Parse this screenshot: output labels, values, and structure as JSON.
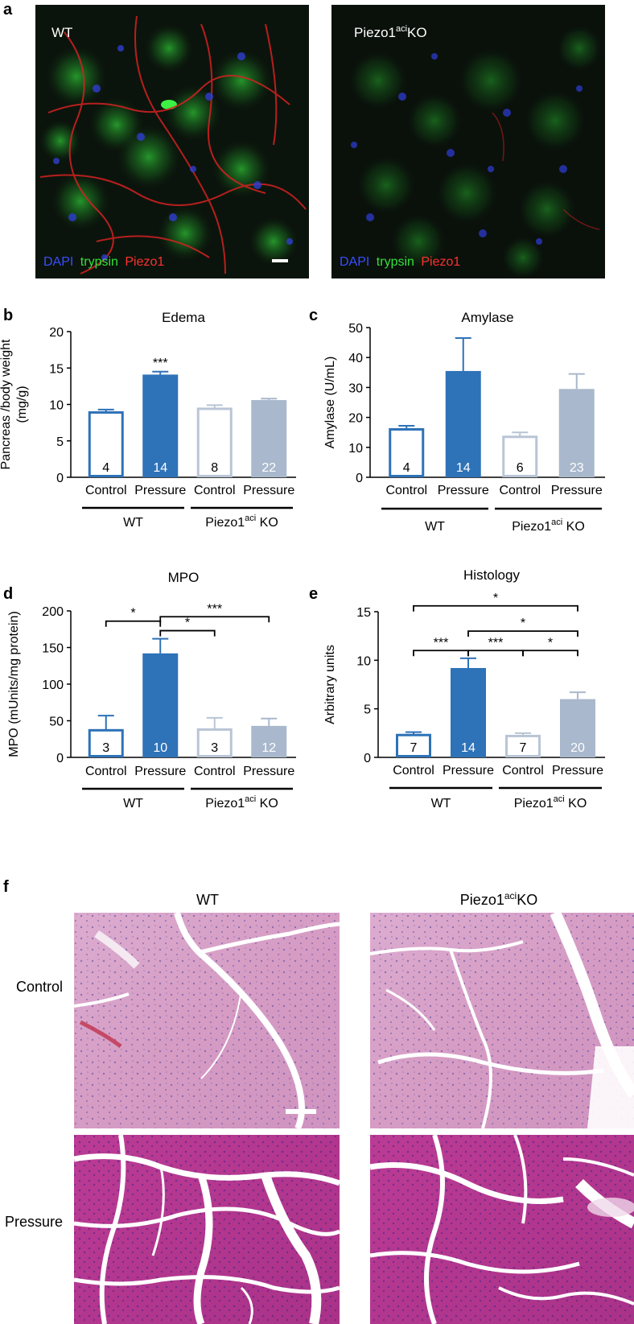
{
  "panel_letters": {
    "a": "a",
    "b": "b",
    "c": "c",
    "d": "d",
    "e": "e",
    "f": "f"
  },
  "micrographs": {
    "wt_label": "WT",
    "ko_label_base": "Piezo1",
    "ko_label_sup": "aci",
    "ko_label_tail": "KO",
    "stain_legend": {
      "dapi": "DAPI",
      "trypsin": "trypsin",
      "piezo1": "Piezo1"
    },
    "colors": {
      "dapi": "#3a4dff",
      "trypsin": "#35e03a",
      "piezo1": "#ff3030",
      "label": "#ffffff"
    }
  },
  "histology": {
    "col_wt": "WT",
    "col_ko_base": "Piezo1",
    "col_ko_sup": "aci",
    "col_ko_tail": "KO",
    "row_control": "Control",
    "row_pressure": "Pressure"
  },
  "colors": {
    "wt": "#2e72b8",
    "ko": "#a9b8cc",
    "ko_control": "#b9c5d5",
    "text": "#000000"
  },
  "chart_data": [
    {
      "id": "b",
      "type": "bar",
      "title": "Edema",
      "ylabel_lines": [
        "Pancreas /body weight",
        "(mg/g)"
      ],
      "categories": [
        "Control",
        "Pressure",
        "Control",
        "Pressure"
      ],
      "values": [
        8.9,
        14.1,
        9.4,
        10.6
      ],
      "errors": [
        0.4,
        0.4,
        0.5,
        0.2
      ],
      "n_labels": [
        "4",
        "14",
        "8",
        "22"
      ],
      "filled": [
        false,
        true,
        false,
        true
      ],
      "group": [
        "wt",
        "wt",
        "ko",
        "ko"
      ],
      "ylim": [
        0,
        20
      ],
      "yticks": [
        0,
        5,
        10,
        15,
        20
      ],
      "groups": [
        {
          "name": "WT"
        },
        {
          "name_base": "Piezo1",
          "name_sup": "aci",
          "name_tail": " KO"
        }
      ],
      "annotations": [
        {
          "bar": 1,
          "text": "***"
        }
      ],
      "brackets": []
    },
    {
      "id": "c",
      "type": "bar",
      "title": "Amylase",
      "ylabel_lines": [
        "Amylase (U/mL)"
      ],
      "categories": [
        "Control",
        "Pressure",
        "Control",
        "Pressure"
      ],
      "values": [
        16,
        35.5,
        13.5,
        29.5
      ],
      "errors": [
        1.2,
        11,
        1.5,
        5
      ],
      "n_labels": [
        "4",
        "14",
        "6",
        "23"
      ],
      "filled": [
        false,
        true,
        false,
        true
      ],
      "group": [
        "wt",
        "wt",
        "ko",
        "ko"
      ],
      "ylim": [
        0,
        50
      ],
      "yticks": [
        0,
        10,
        20,
        30,
        40,
        50
      ],
      "groups": [
        {
          "name": "WT"
        },
        {
          "name_base": "Piezo1",
          "name_sup": "aci",
          "name_tail": " KO"
        }
      ],
      "annotations": [],
      "brackets": []
    },
    {
      "id": "d",
      "type": "bar",
      "title": "MPO",
      "ylabel_lines": [
        "MPO (mUnits/mg protein)"
      ],
      "categories": [
        "Control",
        "Pressure",
        "Control",
        "Pressure"
      ],
      "values": [
        37,
        142,
        38,
        43
      ],
      "errors": [
        20,
        20,
        16,
        10
      ],
      "n_labels": [
        "3",
        "10",
        "3",
        "12"
      ],
      "filled": [
        false,
        true,
        false,
        true
      ],
      "group": [
        "wt",
        "wt",
        "ko",
        "ko"
      ],
      "ylim": [
        0,
        200
      ],
      "yticks": [
        0,
        50,
        100,
        150,
        200
      ],
      "groups": [
        {
          "name": "WT"
        },
        {
          "name_base": "Piezo1",
          "name_sup": "aci",
          "name_tail": " KO"
        }
      ],
      "annotations": [],
      "brackets": [
        {
          "from": 0,
          "to": 1,
          "level": 186,
          "text": "*"
        },
        {
          "from": 1,
          "to": 2,
          "level": 173,
          "text": "*"
        },
        {
          "from": 1,
          "to": 3,
          "level": 192,
          "text": "***"
        }
      ]
    },
    {
      "id": "e",
      "type": "bar",
      "title": "Histology",
      "ylabel_lines": [
        "Arbitrary units"
      ],
      "categories": [
        "Control",
        "Pressure",
        "Control",
        "Pressure"
      ],
      "values": [
        2.3,
        9.2,
        2.2,
        6.0
      ],
      "errors": [
        0.3,
        1.0,
        0.3,
        0.7
      ],
      "n_labels": [
        "7",
        "14",
        "7",
        "20"
      ],
      "filled": [
        false,
        true,
        false,
        true
      ],
      "group": [
        "wt",
        "wt",
        "ko",
        "ko"
      ],
      "ylim": [
        0,
        15
      ],
      "yticks": [
        0,
        5,
        10,
        15
      ],
      "groups": [
        {
          "name": "WT"
        },
        {
          "name_base": "Piezo1",
          "name_sup": "aci",
          "name_tail": " KO"
        }
      ],
      "annotations": [],
      "brackets": [
        {
          "from": 0,
          "to": 1,
          "level": 11.0,
          "text": "***"
        },
        {
          "from": 1,
          "to": 2,
          "level": 11.0,
          "text": "***"
        },
        {
          "from": 2,
          "to": 3,
          "level": 11.0,
          "text": "*"
        },
        {
          "from": 1,
          "to": 3,
          "level": 13.0,
          "text": "*"
        },
        {
          "from": 0,
          "to": 3,
          "level": 15.6,
          "text": "*"
        }
      ]
    }
  ]
}
